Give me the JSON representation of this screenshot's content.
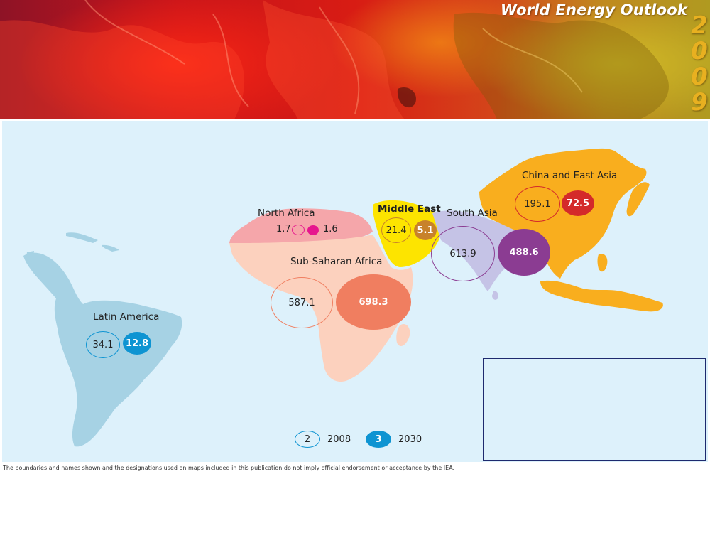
{
  "banner": {
    "title": "World Energy Outlook",
    "year_digits": [
      "2",
      "0",
      "0",
      "9"
    ]
  },
  "regions": {
    "latin_america": {
      "name": "Latin America",
      "value_2008": "34.1",
      "value_2030": "12.8",
      "color": "#0e94d2"
    },
    "north_africa": {
      "name": "North Africa",
      "value_2008": "1.7",
      "value_2030": "1.6",
      "color": "#e6168e"
    },
    "sub_saharan_africa": {
      "name": "Sub-Saharan Africa",
      "value_2008": "587.1",
      "value_2030": "698.3",
      "color": "#f07e60"
    },
    "middle_east": {
      "name": "Middle East",
      "value_2008": "21.4",
      "value_2030": "5.1",
      "color": "#c8822a"
    },
    "south_asia": {
      "name": "South Asia",
      "value_2008": "613.9",
      "value_2030": "488.6",
      "color": "#8b3c92"
    },
    "china_east_asia": {
      "name": "China and East Asia",
      "value_2008": "195.1",
      "value_2030": "72.5",
      "color": "#d42a2a"
    }
  },
  "legend": {
    "items": [
      {
        "symbol": "2",
        "label": "2008",
        "style": "outline"
      },
      {
        "symbol": "3",
        "label": "2030",
        "style": "filled"
      }
    ],
    "color": "#0e94d2"
  },
  "disclaimer": "The boundaries and names shown and the designations used on maps included in this publication do not imply official endorsement or acceptance by the IEA."
}
